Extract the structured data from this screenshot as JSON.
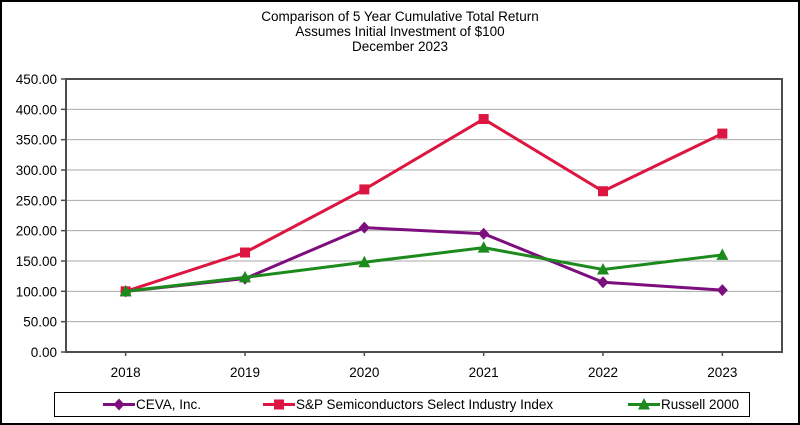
{
  "chart_data": {
    "type": "line",
    "title_lines": [
      "Comparison of 5 Year Cumulative Total Return",
      "Assumes Initial Investment of $100",
      "December 2023"
    ],
    "x": [
      "2018",
      "2019",
      "2020",
      "2021",
      "2022",
      "2023"
    ],
    "ylim": [
      0,
      450
    ],
    "ytick_step": 50,
    "ytick_labels": [
      "0.00",
      "50.00",
      "100.00",
      "150.00",
      "200.00",
      "250.00",
      "300.00",
      "350.00",
      "400.00",
      "450.00"
    ],
    "grid": "horizontal-gridlines",
    "legend_position": "bottom",
    "series": [
      {
        "name": "CEVA, Inc.",
        "marker": "diamond",
        "color": "#7D0E7D",
        "values": [
          100,
          121,
          205,
          195,
          115,
          102
        ]
      },
      {
        "name": "S&P Semiconductors Select Industry Index",
        "marker": "square",
        "color": "#DC1641",
        "values": [
          100,
          164,
          268,
          384,
          265,
          360
        ]
      },
      {
        "name": "Russell 2000",
        "marker": "triangle",
        "color": "#1C8A1C",
        "values": [
          100,
          123,
          148,
          172,
          136,
          160
        ]
      }
    ],
    "colors": {
      "gridline": "#A9A9A9",
      "plot_border": "#4D4D4D",
      "text": "#000000"
    }
  }
}
